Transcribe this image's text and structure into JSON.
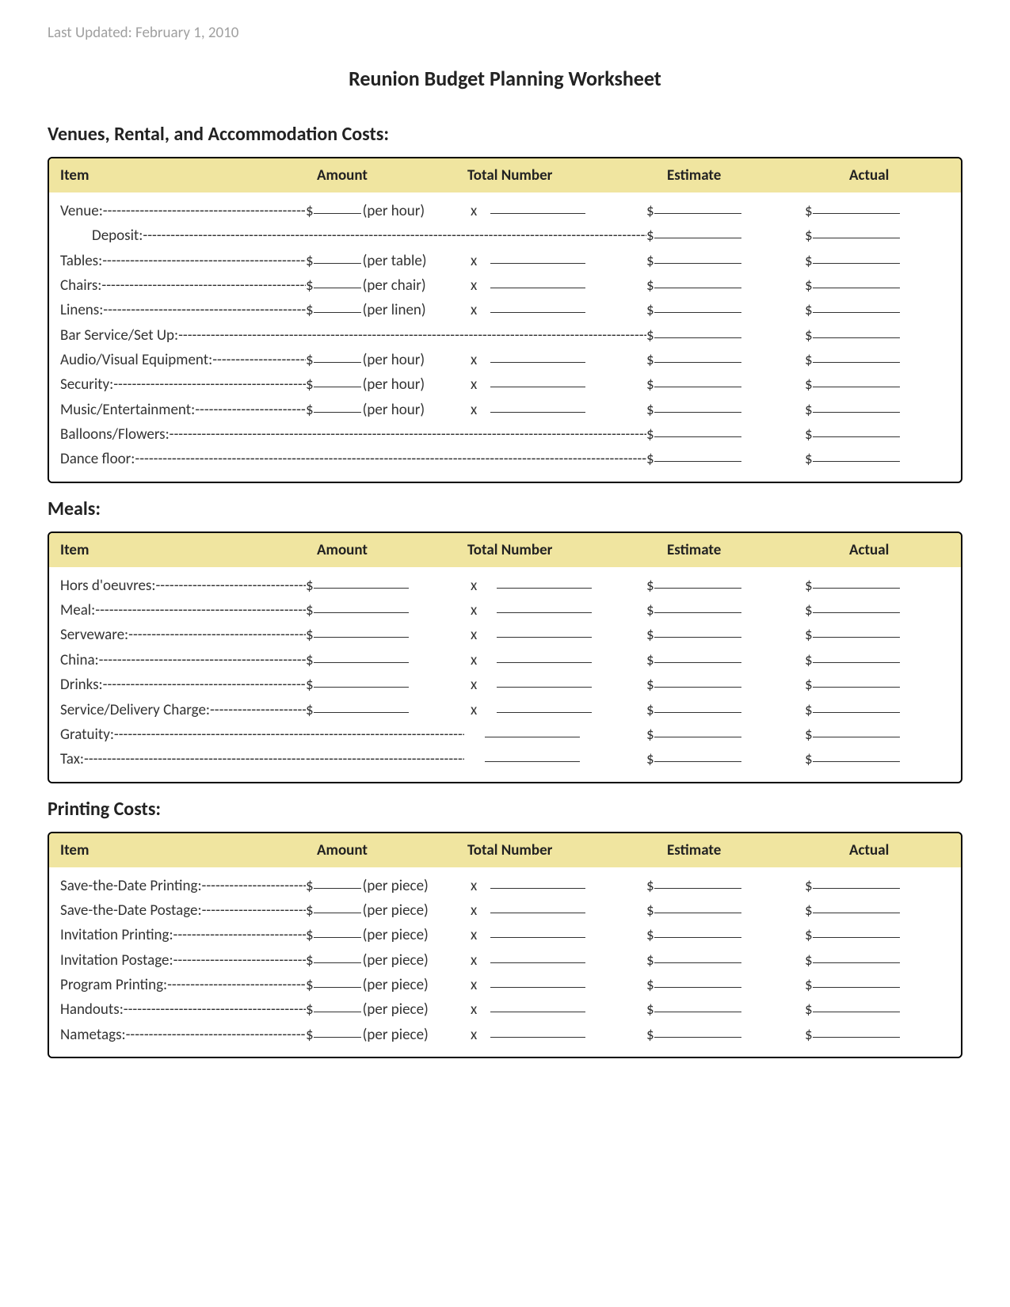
{
  "header": {
    "timestamp": "Last Updated: February 1, 2010"
  },
  "title": "Reunion Budget Planning Worksheet",
  "columns": {
    "item": "Item",
    "amount": "Amount",
    "total": "Total Number",
    "estimate": "Estimate",
    "actual": "Actual"
  },
  "colors": {
    "header_bg": "#f0e5a0",
    "border": "#000000",
    "text": "#333333",
    "muted": "#a0a0a0"
  },
  "sections": [
    {
      "heading": "Venues, Rental, and Accommodation Costs:",
      "rows": [
        {
          "label": "Venue:",
          "per": "(per hour)",
          "type": "unit"
        },
        {
          "label": "Deposit:",
          "type": "longonly",
          "indent": true
        },
        {
          "label": "Tables:",
          "per": "(per table)",
          "type": "unit"
        },
        {
          "label": "Chairs:",
          "per": "(per chair)",
          "type": "unit"
        },
        {
          "label": "Linens:",
          "per": "(per linen)",
          "type": "unit"
        },
        {
          "label": "Bar Service/Set Up:",
          "type": "longonly"
        },
        {
          "label": "Audio/Visual Equipment:",
          "per": "(per hour)",
          "type": "unit"
        },
        {
          "label": "Security:",
          "per": "(per hour)",
          "type": "unit"
        },
        {
          "label": "Music/Entertainment:",
          "per": "(per hour)",
          "type": "unit"
        },
        {
          "label": "Balloons/Flowers:",
          "type": "longonly"
        },
        {
          "label": "Dance floor:",
          "type": "longonly"
        }
      ]
    },
    {
      "heading": "Meals:",
      "rows": [
        {
          "label": "Hors d'oeuvres:",
          "type": "amtx"
        },
        {
          "label": "Meal:",
          "type": "amtx"
        },
        {
          "label": "Serveware:",
          "type": "amtx"
        },
        {
          "label": "China:",
          "type": "amtx"
        },
        {
          "label": "Drinks:",
          "type": "amtx"
        },
        {
          "label": "Service/Delivery Charge:",
          "type": "amtx"
        },
        {
          "label": "Gratuity:",
          "type": "dashnum"
        },
        {
          "label": "Tax:",
          "type": "dashnum"
        }
      ]
    },
    {
      "heading": "Printing Costs:",
      "rows": [
        {
          "label": "Save-the-Date Printing:",
          "per": "(per piece)",
          "type": "unit"
        },
        {
          "label": "Save-the-Date Postage:",
          "per": "(per piece)",
          "type": "unit"
        },
        {
          "label": "Invitation Printing:",
          "per": "(per piece)",
          "type": "unit"
        },
        {
          "label": "Invitation Postage:",
          "per": "(per piece)",
          "type": "unit"
        },
        {
          "label": "Program Printing:",
          "per": "(per piece)",
          "type": "unit"
        },
        {
          "label": "Handouts:",
          "per": "(per piece)",
          "type": "unit"
        },
        {
          "label": "Nametags:",
          "per": "(per piece)",
          "type": "unit"
        }
      ]
    }
  ]
}
